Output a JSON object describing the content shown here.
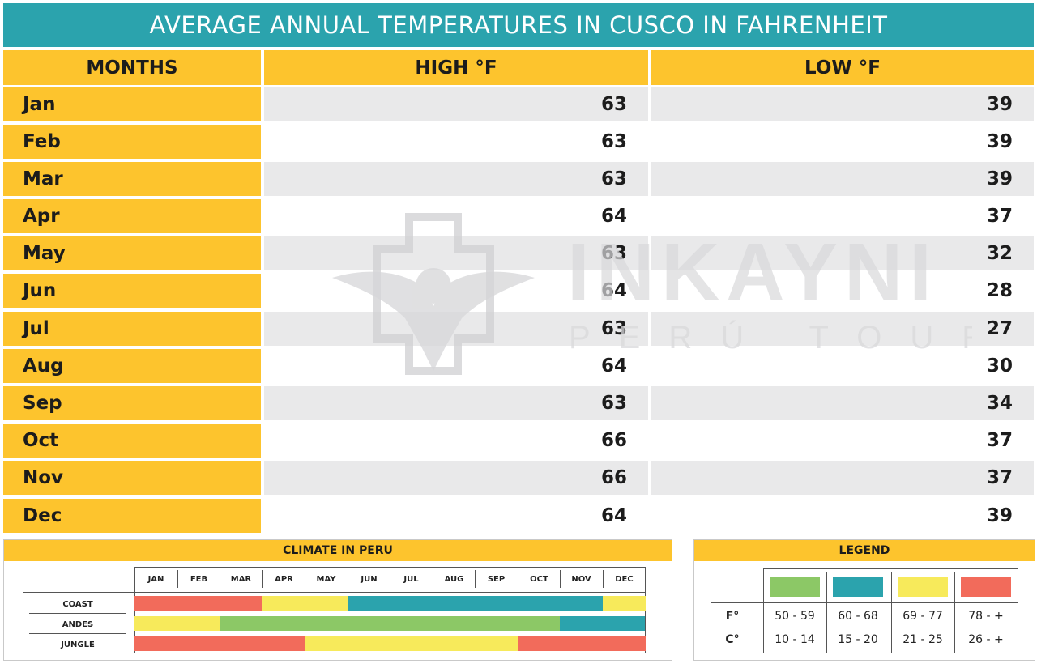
{
  "title": "AVERAGE ANNUAL TEMPERATURES IN CUSCO IN FAHRENHEIT",
  "headers": {
    "months": "MONTHS",
    "high": "HIGH °F",
    "low": "LOW °F"
  },
  "rows": [
    {
      "month": "Jan",
      "high": "63",
      "low": "39"
    },
    {
      "month": "Feb",
      "high": "63",
      "low": "39"
    },
    {
      "month": "Mar",
      "high": "63",
      "low": "39"
    },
    {
      "month": "Apr",
      "high": "64",
      "low": "37"
    },
    {
      "month": "May",
      "high": "63",
      "low": "32"
    },
    {
      "month": "Jun",
      "high": "64",
      "low": "28"
    },
    {
      "month": "Jul",
      "high": "63",
      "low": "27"
    },
    {
      "month": "Aug",
      "high": "64",
      "low": "30"
    },
    {
      "month": "Sep",
      "high": "63",
      "low": "34"
    },
    {
      "month": "Oct",
      "high": "66",
      "low": "37"
    },
    {
      "month": "Nov",
      "high": "66",
      "low": "37"
    },
    {
      "month": "Dec",
      "high": "64",
      "low": "39"
    }
  ],
  "watermark": {
    "brand": "INKAYNI",
    "sub": "PERÚ TOURS"
  },
  "climate": {
    "title": "CLIMATE IN PERU",
    "months": [
      "JAN",
      "FEB",
      "MAR",
      "APR",
      "MAY",
      "JUN",
      "JUL",
      "AUG",
      "SEP",
      "OCT",
      "NOV",
      "DEC"
    ],
    "regions": [
      {
        "name": "COAST",
        "segments": [
          {
            "from": 0,
            "to": 3,
            "color": "#f26b5b"
          },
          {
            "from": 3,
            "to": 5,
            "color": "#f7ea5b"
          },
          {
            "from": 5,
            "to": 11,
            "color": "#2ba3ad"
          },
          {
            "from": 11,
            "to": 12,
            "color": "#f7ea5b"
          }
        ]
      },
      {
        "name": "ANDES",
        "segments": [
          {
            "from": 0,
            "to": 2,
            "color": "#f7ea5b"
          },
          {
            "from": 2,
            "to": 10,
            "color": "#8cc866"
          },
          {
            "from": 10,
            "to": 12,
            "color": "#2ba3ad"
          }
        ]
      },
      {
        "name": "JUNGLE",
        "segments": [
          {
            "from": 0,
            "to": 4,
            "color": "#f26b5b"
          },
          {
            "from": 4,
            "to": 9,
            "color": "#f7ea5b"
          },
          {
            "from": 9,
            "to": 12,
            "color": "#f26b5b"
          }
        ]
      }
    ]
  },
  "legend": {
    "title": "LEGEND",
    "swatches": [
      "#8cc866",
      "#2ba3ad",
      "#f7ea5b",
      "#f26b5b"
    ],
    "f_label": "F°",
    "c_label": "C°",
    "f_ranges": [
      "50 - 59",
      "60 - 68",
      "69 - 77",
      "78 - +"
    ],
    "c_ranges": [
      "10 - 14",
      "15 - 20",
      "21 - 25",
      "26 - +"
    ]
  }
}
